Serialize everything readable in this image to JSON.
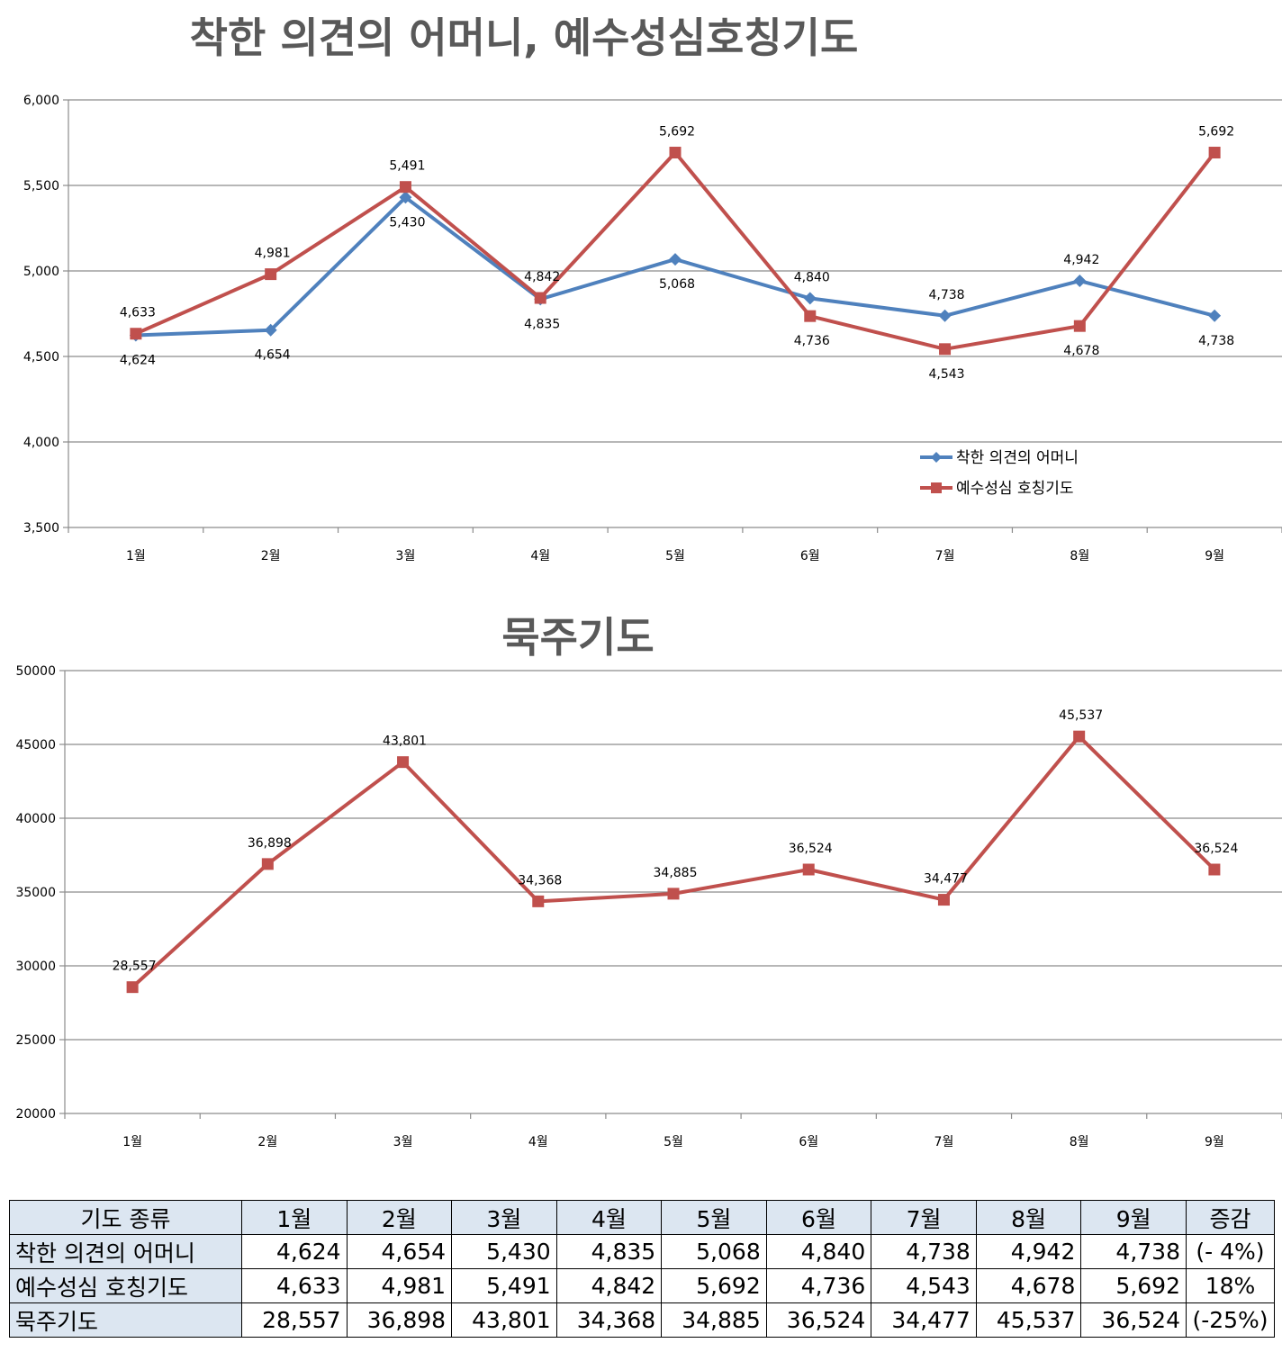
{
  "chart_data": [
    {
      "type": "line",
      "title": "착한 의견의 어머니, 예수성심호칭기도",
      "categories": [
        "1월",
        "2월",
        "3월",
        "4월",
        "5월",
        "6월",
        "7월",
        "8월",
        "9월"
      ],
      "series": [
        {
          "name": "착한 의견의 어머니",
          "values": [
            4624,
            4654,
            5430,
            4835,
            5068,
            4840,
            4738,
            4942,
            4738
          ],
          "color": "#4f81bd",
          "marker": "diamond"
        },
        {
          "name": "예수성심 호칭기도",
          "values": [
            4633,
            4981,
            5491,
            4842,
            5692,
            4736,
            4543,
            4678,
            5692
          ],
          "color": "#c0504d",
          "marker": "square"
        }
      ],
      "ylim": [
        3500,
        6000
      ],
      "yticks": [
        3500,
        4000,
        4500,
        5000,
        5500,
        6000
      ],
      "ytick_labels": [
        "3,500",
        "4,000",
        "4,500",
        "5,000",
        "5,500",
        "6,000"
      ],
      "grid": true,
      "legend": "bottom-right"
    },
    {
      "type": "line",
      "title": "묵주기도",
      "categories": [
        "1월",
        "2월",
        "3월",
        "4월",
        "5월",
        "6월",
        "7월",
        "8월",
        "9월"
      ],
      "series": [
        {
          "values": [
            28557,
            36898,
            43801,
            34368,
            34885,
            36524,
            34477,
            45537,
            36524
          ],
          "color": "#c0504d",
          "marker": "square"
        }
      ],
      "ylim": [
        20000,
        50000
      ],
      "yticks": [
        20000,
        25000,
        30000,
        35000,
        40000,
        45000,
        50000
      ],
      "ytick_labels": [
        "20000",
        "25000",
        "30000",
        "35000",
        "40000",
        "45000",
        "50000"
      ],
      "grid": true,
      "legend": "none"
    }
  ],
  "table": {
    "header": [
      "기도 종류",
      "1월",
      "2월",
      "3월",
      "4월",
      "5월",
      "6월",
      "7월",
      "8월",
      "9월",
      "증감"
    ],
    "rows": [
      {
        "label": "착한 의견의 어머니",
        "cells": [
          "4,624",
          "4,654",
          "5,430",
          "4,835",
          "5,068",
          "4,840",
          "4,738",
          "4,942",
          "4,738"
        ],
        "change": "(- 4%)"
      },
      {
        "label": "예수성심 호칭기도",
        "cells": [
          "4,633",
          "4,981",
          "5,491",
          "4,842",
          "5,692",
          "4,736",
          "4,543",
          "4,678",
          "5,692"
        ],
        "change": "18%"
      },
      {
        "label": "묵주기도",
        "cells": [
          "28,557",
          "36,898",
          "43,801",
          "34,368",
          "34,885",
          "36,524",
          "34,477",
          "45,537",
          "36,524"
        ],
        "change": "(-25%)"
      }
    ]
  }
}
